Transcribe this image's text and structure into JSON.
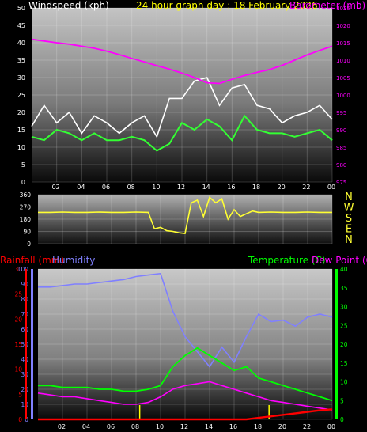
{
  "header": {
    "left_title": "Windspeed (kph)",
    "center_title": "24 hour graph day : 18 February 2026",
    "right_title": "Barometer (mb)"
  },
  "colors": {
    "background": "#000000",
    "wind_title": "#ffffff",
    "date_title": "#ffff00",
    "baro_title": "#ff00ff",
    "gust": "#ffffff",
    "avg_wind": "#33ff33",
    "barometer": "#ff00ff",
    "direction": "#ffff33",
    "rain_title": "#ff0000",
    "humidity_title": "#8080ff",
    "temp_title": "#00ff00",
    "dew_title": "#ff00ff",
    "solar_markers": "#ffff00"
  },
  "x_ticks": [
    "02",
    "04",
    "06",
    "08",
    "10",
    "12",
    "14",
    "16",
    "18",
    "20",
    "22",
    "00"
  ],
  "compass": [
    "N",
    "W",
    "S",
    "E",
    "N"
  ],
  "lower_titles": {
    "rainfall": "Rainfall (mm)",
    "humidity": "Humidity",
    "temperature": "Temperature (C)",
    "dew_point": "Dew Point (C)"
  },
  "chart_data": [
    {
      "type": "line",
      "ylabel": "Windspeed (kph)",
      "y2label": "Barometer (mb)",
      "ylim": [
        0,
        50
      ],
      "y2lim": [
        975,
        1025
      ],
      "y_ticks": [
        0,
        5,
        10,
        15,
        20,
        25,
        30,
        35,
        40,
        45,
        50
      ],
      "y2_ticks": [
        975,
        980,
        985,
        990,
        995,
        1000,
        1005,
        1010,
        1015,
        1020,
        1025
      ],
      "x_hours": [
        0,
        1,
        2,
        3,
        4,
        5,
        6,
        7,
        8,
        9,
        10,
        11,
        12,
        13,
        14,
        15,
        16,
        17,
        18,
        19,
        20,
        21,
        22,
        23,
        24
      ],
      "series": [
        {
          "name": "Gust",
          "axis": "left",
          "values": [
            16,
            22,
            17,
            20,
            14,
            19,
            17,
            14,
            17,
            19,
            13,
            24,
            24,
            29,
            30,
            22,
            27,
            28,
            22,
            21,
            17,
            19,
            20,
            22,
            18
          ]
        },
        {
          "name": "Average",
          "axis": "left",
          "values": [
            13,
            12,
            15,
            14,
            12,
            14,
            12,
            12,
            13,
            12,
            9,
            11,
            17,
            15,
            18,
            16,
            12,
            19,
            15,
            14,
            14,
            13,
            14,
            15,
            12
          ]
        },
        {
          "name": "Barometer",
          "axis": "right",
          "values": [
            1016,
            1015.5,
            1015,
            1014.6,
            1014,
            1013.4,
            1012.6,
            1011.6,
            1010.5,
            1009.5,
            1008.4,
            1007.4,
            1006.3,
            1005,
            1003.5,
            1003.3,
            1004.5,
            1005.6,
            1006.5,
            1007.3,
            1008.5,
            1010,
            1011.5,
            1012.8,
            1014
          ]
        }
      ]
    },
    {
      "type": "line",
      "ylabel": "Wind direction",
      "ylim": [
        0,
        360
      ],
      "y_ticks": [
        0,
        90,
        180,
        270,
        360
      ],
      "x_hours": [
        0,
        1,
        2,
        3,
        4,
        5,
        6,
        7,
        8,
        9,
        9.5,
        10,
        10.5,
        11,
        11.5,
        12,
        12.5,
        13,
        13.5,
        14,
        14.5,
        15,
        15.5,
        16,
        16.5,
        17,
        17.5,
        18,
        19,
        20,
        21,
        22,
        23,
        24
      ],
      "series": [
        {
          "name": "Direction",
          "values": [
            230,
            230,
            232,
            230,
            230,
            232,
            230,
            230,
            232,
            230,
            110,
            120,
            95,
            90,
            80,
            75,
            300,
            320,
            200,
            340,
            300,
            330,
            180,
            250,
            200,
            220,
            240,
            230,
            232,
            230,
            230,
            232,
            230,
            230
          ]
        }
      ]
    },
    {
      "type": "line",
      "ylabel": "Humidity",
      "ylim": [
        0,
        100
      ],
      "y_ticks": [
        0,
        10,
        20,
        30,
        40,
        50,
        60,
        70,
        80,
        90,
        100
      ],
      "y2lim": [
        0,
        40
      ],
      "y2_ticks": [
        0,
        5,
        10,
        15,
        20,
        25,
        30,
        35,
        40
      ],
      "rain_ylim": [
        0,
        30
      ],
      "rain_ticks": [
        0,
        5,
        10,
        15,
        20,
        25,
        30
      ],
      "x_hours": [
        0,
        1,
        2,
        3,
        4,
        5,
        6,
        7,
        8,
        9,
        10,
        11,
        12,
        13,
        14,
        15,
        16,
        17,
        18,
        19,
        20,
        21,
        22,
        23,
        24
      ],
      "series": [
        {
          "name": "Humidity",
          "axis": "humidity",
          "values": [
            88,
            88,
            89,
            90,
            90,
            91,
            92,
            93,
            95,
            96,
            97,
            72,
            55,
            45,
            35,
            48,
            38,
            55,
            70,
            65,
            66,
            62,
            68,
            70,
            68
          ]
        },
        {
          "name": "Temperature",
          "axis": "right",
          "values": [
            9,
            9,
            8.5,
            8.5,
            8.5,
            8,
            8,
            7.5,
            7.5,
            8,
            9,
            14,
            17,
            19,
            17,
            15,
            13,
            14,
            11,
            10,
            9,
            8,
            7,
            6,
            5
          ]
        },
        {
          "name": "Dew Point",
          "axis": "right",
          "values": [
            7,
            6.5,
            6,
            6,
            5.5,
            5,
            4.5,
            4,
            4,
            4.5,
            6,
            8,
            9,
            9.5,
            10,
            9,
            8,
            7,
            6,
            5,
            4.5,
            4,
            3.5,
            3,
            2.5
          ]
        },
        {
          "name": "Rainfall",
          "axis": "rain",
          "values": [
            0,
            0,
            0,
            0,
            0,
            0,
            0,
            0,
            0,
            0,
            0,
            0,
            0,
            0,
            0,
            0,
            0,
            0,
            0.3,
            0.6,
            0.9,
            1.2,
            1.5,
            1.8,
            2.0
          ]
        }
      ]
    }
  ]
}
